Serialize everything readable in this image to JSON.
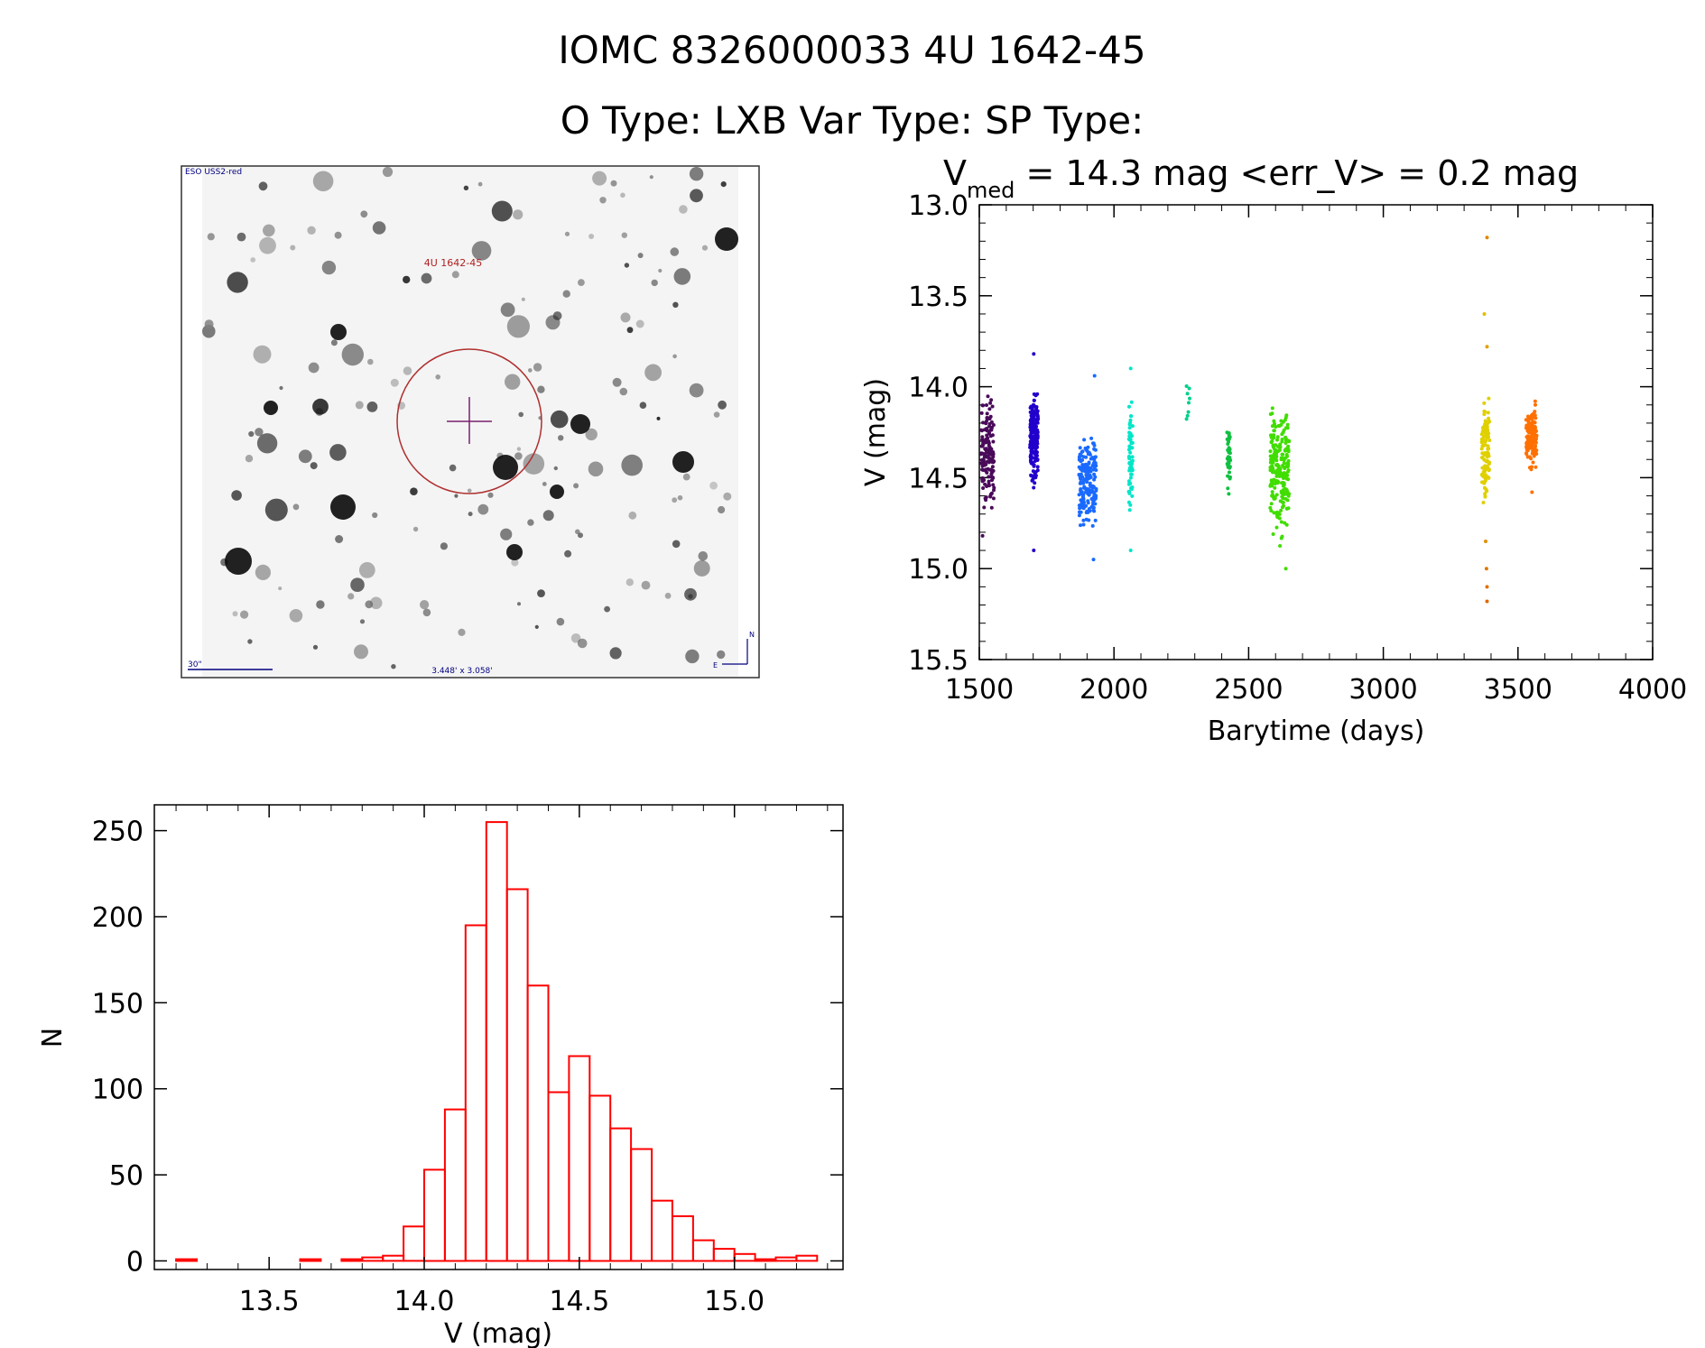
{
  "header": {
    "title_line1": "IOMC 8326000033   4U 1642-45",
    "title_line2": "O Type: LXB  Var Type:    SP Type:"
  },
  "finder": {
    "survey_label": "ESO USS2-red",
    "target_label": "4U 1642-45",
    "scale_label": "30\"",
    "fov_label": "3.448' x 3.058'",
    "compass_n": "N",
    "compass_e": "E"
  },
  "lightcurve": {
    "subtitle_v": "V",
    "subtitle_sub": "med",
    "subtitle_rest": " = 14.3 mag <err_V> = 0.2 mag",
    "xlabel": "Barytime (days)",
    "ylabel": "V (mag)"
  },
  "histogram": {
    "xlabel": "V (mag)",
    "ylabel": "N"
  },
  "colors": {
    "histogram": "#ff0000",
    "finder_circle": "#b03030",
    "finder_text_red": "#b02020",
    "finder_text_blue": "#000080",
    "finder_cross": "#7a2070"
  },
  "chart_data": [
    {
      "type": "scatter",
      "name": "lightcurve",
      "xlabel": "Barytime (days)",
      "ylabel": "V (mag)",
      "xlim": [
        1500,
        4000
      ],
      "ylim": [
        15.5,
        13.0
      ],
      "y_inverted": true,
      "xticks": [
        1500,
        2000,
        2500,
        3000,
        3500,
        4000
      ],
      "yticks": [
        13.0,
        13.5,
        14.0,
        14.5,
        15.0,
        15.5
      ],
      "groups": [
        {
          "x_range": [
            1505,
            1555
          ],
          "v_range": [
            14.0,
            14.75
          ],
          "color": "#4a0a5a",
          "n": 150
        },
        {
          "x_range": [
            1688,
            1718
          ],
          "v_range": [
            13.95,
            14.6
          ],
          "color": "#2200cc",
          "n": 180
        },
        {
          "x_range": [
            1870,
            1935
          ],
          "v_range": [
            14.15,
            14.85
          ],
          "color": "#1a6aff",
          "n": 190
        },
        {
          "x_range": [
            2055,
            2070
          ],
          "v_range": [
            13.95,
            14.8
          ],
          "color": "#00e6c8",
          "n": 60
        },
        {
          "x_range": [
            2268,
            2285
          ],
          "v_range": [
            13.92,
            14.25
          ],
          "color": "#00d08a",
          "n": 8
        },
        {
          "x_range": [
            2420,
            2432
          ],
          "v_range": [
            14.15,
            14.62
          ],
          "color": "#10c040",
          "n": 35
        },
        {
          "x_range": [
            2580,
            2650
          ],
          "v_range": [
            13.98,
            14.95
          ],
          "color": "#40dd00",
          "n": 220
        },
        {
          "x_range": [
            3365,
            3395
          ],
          "v_range": [
            13.95,
            14.75
          ],
          "color": "#e0d000",
          "n": 110
        },
        {
          "x_range": [
            3530,
            3570
          ],
          "v_range": [
            14.05,
            14.5
          ],
          "color": "#ff7000",
          "n": 140
        }
      ],
      "outliers": [
        {
          "x": 1702,
          "y": 13.82,
          "color": "#2200cc"
        },
        {
          "x": 1702,
          "y": 14.9,
          "color": "#2200cc"
        },
        {
          "x": 1512,
          "y": 14.82,
          "color": "#4a0a5a"
        },
        {
          "x": 1928,
          "y": 13.94,
          "color": "#1a6aff"
        },
        {
          "x": 1924,
          "y": 14.95,
          "color": "#1a6aff"
        },
        {
          "x": 2062,
          "y": 14.9,
          "color": "#00e6c8"
        },
        {
          "x": 2062,
          "y": 13.9,
          "color": "#00e6c8"
        },
        {
          "x": 2638,
          "y": 15.0,
          "color": "#40dd00"
        },
        {
          "x": 3385,
          "y": 13.18,
          "color": "#e08800"
        },
        {
          "x": 3375,
          "y": 13.6,
          "color": "#e0c000"
        },
        {
          "x": 3385,
          "y": 13.78,
          "color": "#e0a000"
        },
        {
          "x": 3380,
          "y": 14.85,
          "color": "#e09000"
        },
        {
          "x": 3383,
          "y": 15.0,
          "color": "#e07800"
        },
        {
          "x": 3385,
          "y": 15.1,
          "color": "#e07000"
        },
        {
          "x": 3385,
          "y": 15.18,
          "color": "#e06800"
        },
        {
          "x": 3552,
          "y": 14.58,
          "color": "#ff7000"
        }
      ]
    },
    {
      "type": "bar",
      "name": "histogram",
      "xlabel": "V (mag)",
      "ylabel": "N",
      "xlim": [
        13.13,
        15.35
      ],
      "ylim": [
        -5,
        265
      ],
      "xticks": [
        13.5,
        14.0,
        14.5,
        15.0
      ],
      "yticks": [
        0,
        50,
        100,
        150,
        200,
        250
      ],
      "bin_width": 0.0667,
      "bin_starts": [
        13.2,
        13.2667,
        13.3333,
        13.4,
        13.4667,
        13.5333,
        13.6,
        13.6667,
        13.7333,
        13.8,
        13.8667,
        13.9333,
        14.0,
        14.0667,
        14.1333,
        14.2,
        14.2667,
        14.3333,
        14.4,
        14.4667,
        14.5333,
        14.6,
        14.6667,
        14.7333,
        14.8,
        14.8667,
        14.9333,
        15.0,
        15.0667,
        15.1333,
        15.2
      ],
      "values": [
        1,
        0,
        0,
        0,
        0,
        0,
        1,
        0,
        1,
        2,
        3,
        20,
        53,
        88,
        195,
        255,
        216,
        160,
        98,
        119,
        96,
        77,
        65,
        35,
        26,
        12,
        7,
        4,
        1,
        2,
        3
      ]
    }
  ]
}
